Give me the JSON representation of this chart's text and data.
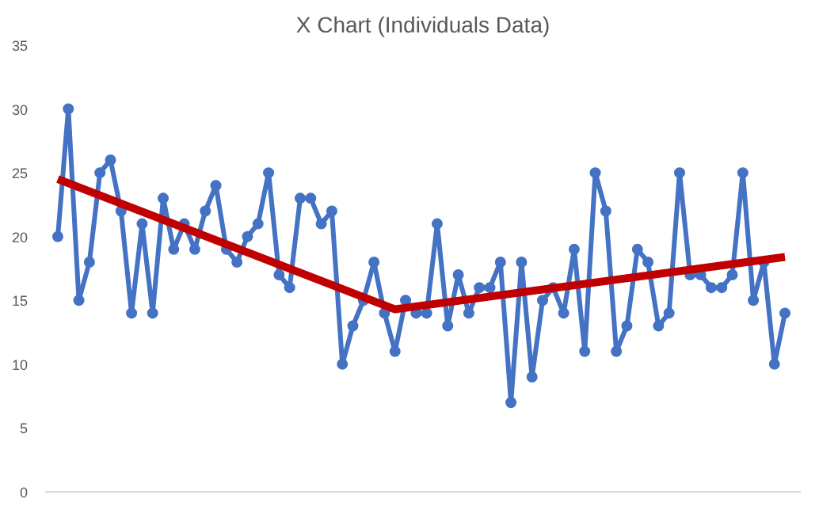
{
  "chart_data": {
    "type": "line",
    "title": "X Chart (Individuals Data)",
    "categories": [
      null,
      null,
      null,
      null,
      null,
      null,
      null,
      null,
      null,
      null,
      null,
      null,
      null,
      null,
      null,
      null,
      null,
      null,
      null,
      null,
      null,
      null,
      null,
      null,
      null,
      null,
      null,
      null,
      null,
      null,
      null,
      null,
      null,
      null,
      null,
      null,
      null,
      null,
      null,
      null,
      null,
      null,
      null,
      null,
      null,
      null,
      null,
      null,
      null,
      null,
      null,
      null,
      null,
      null,
      null,
      null,
      null,
      null,
      null,
      null,
      null,
      null,
      null,
      null,
      null,
      null,
      null,
      null,
      null,
      null
    ],
    "series": [
      {
        "color": "#4472c4",
        "marker": "circle",
        "values": [
          20,
          30,
          15,
          18,
          25,
          26,
          22,
          14,
          21,
          14,
          23,
          19,
          21,
          19,
          22,
          24,
          19,
          18,
          20,
          21,
          25,
          17,
          16,
          23,
          23,
          21,
          22,
          10,
          13,
          15,
          18,
          14,
          11,
          15,
          14,
          14,
          21,
          13,
          17,
          14,
          16,
          16,
          18,
          7,
          18,
          9,
          15,
          16,
          14,
          19,
          11,
          25,
          22,
          11,
          13,
          19,
          18,
          13,
          14,
          25,
          17,
          17,
          16,
          16,
          17,
          25,
          15,
          18,
          10,
          14
        ]
      },
      {
        "type": "line",
        "color": "#c00000",
        "marker": "none",
        "values": [
          24.5,
          null,
          null,
          null,
          null,
          null,
          null,
          null,
          null,
          null,
          null,
          null,
          null,
          null,
          null,
          null,
          null,
          null,
          null,
          null,
          null,
          null,
          null,
          null,
          null,
          null,
          null,
          null,
          null,
          null,
          null,
          null,
          14.3,
          null,
          null,
          null,
          null,
          null,
          null,
          null,
          null,
          null,
          null,
          null,
          null,
          null,
          null,
          null,
          null,
          null,
          null,
          null,
          null,
          null,
          null,
          null,
          null,
          null,
          null,
          null,
          null,
          null,
          null,
          null,
          null,
          null,
          null,
          null,
          null,
          18.4
        ]
      }
    ],
    "ylim": [
      0,
      35
    ],
    "yticks": [
      0,
      5,
      10,
      15,
      20,
      25,
      30,
      35
    ],
    "grid": false,
    "tick_labels": "y"
  }
}
